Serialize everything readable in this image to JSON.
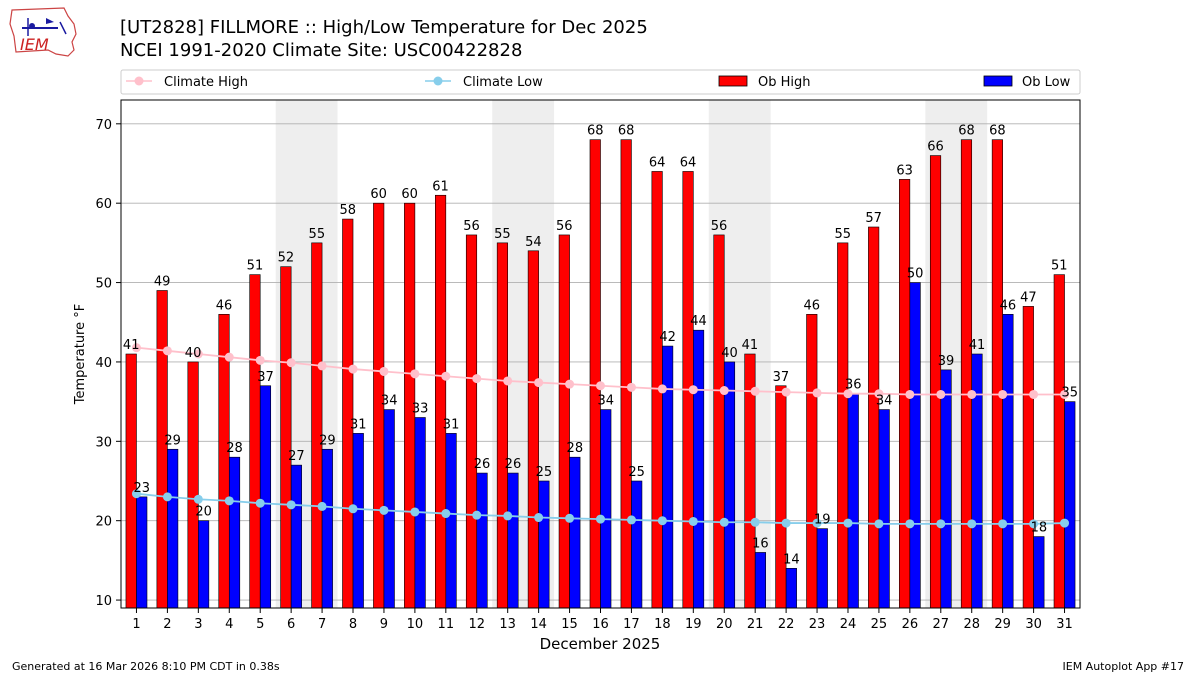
{
  "header": {
    "title_line1": "[UT2828] FILLMORE :: High/Low Temperature for Dec 2025",
    "title_line2": "NCEI 1991-2020 Climate Site: USC00422828",
    "logo_text": "IEM"
  },
  "footer": {
    "left": "Generated at 16 Mar 2026 8:10 PM CDT in 0.38s",
    "right": "IEM Autoplot App #17"
  },
  "colors": {
    "ob_high": "#ff0000",
    "ob_low": "#0000ff",
    "climate_high": "#ffc0cb",
    "climate_low": "#87ceeb",
    "weekend_band": "#eeeeee"
  },
  "chart_data": {
    "type": "bar",
    "xlabel": "December 2025",
    "ylabel": "Temperature °F",
    "ylim": [
      9,
      73
    ],
    "yticks": [
      10,
      20,
      30,
      40,
      50,
      60,
      70
    ],
    "grid": "horizontal",
    "legend_position": "top",
    "legend": [
      "Climate High",
      "Climate Low",
      "Ob High",
      "Ob Low"
    ],
    "categories": [
      "1",
      "2",
      "3",
      "4",
      "5",
      "6",
      "7",
      "8",
      "9",
      "10",
      "11",
      "12",
      "13",
      "14",
      "15",
      "16",
      "17",
      "18",
      "19",
      "20",
      "21",
      "22",
      "23",
      "24",
      "25",
      "26",
      "27",
      "28",
      "29",
      "30",
      "31"
    ],
    "shaded_days": [
      [
        "6",
        "7"
      ],
      [
        "13",
        "14"
      ],
      [
        "20",
        "21"
      ],
      [
        "27",
        "28"
      ]
    ],
    "series": [
      {
        "name": "Ob High",
        "kind": "bar",
        "values": [
          41,
          49,
          40,
          46,
          51,
          52,
          55,
          58,
          60,
          60,
          61,
          56,
          55,
          54,
          56,
          68,
          68,
          64,
          64,
          56,
          41,
          37,
          46,
          55,
          57,
          63,
          66,
          68,
          68,
          47,
          51
        ]
      },
      {
        "name": "Ob Low",
        "kind": "bar",
        "values": [
          23,
          29,
          20,
          28,
          37,
          27,
          29,
          31,
          34,
          33,
          31,
          26,
          26,
          25,
          28,
          34,
          25,
          42,
          44,
          40,
          16,
          14,
          19,
          36,
          34,
          50,
          39,
          41,
          46,
          18,
          35
        ]
      },
      {
        "name": "Climate High",
        "kind": "line",
        "values": [
          41.8,
          41.4,
          41.0,
          40.6,
          40.2,
          39.9,
          39.5,
          39.1,
          38.8,
          38.5,
          38.2,
          37.9,
          37.6,
          37.4,
          37.2,
          37.0,
          36.8,
          36.6,
          36.5,
          36.4,
          36.3,
          36.2,
          36.1,
          36.0,
          36.0,
          35.9,
          35.9,
          35.9,
          35.9,
          35.9,
          35.9
        ]
      },
      {
        "name": "Climate Low",
        "kind": "line",
        "values": [
          23.4,
          23.0,
          22.7,
          22.5,
          22.2,
          22.0,
          21.8,
          21.5,
          21.3,
          21.1,
          20.9,
          20.7,
          20.6,
          20.4,
          20.3,
          20.2,
          20.1,
          20.0,
          19.9,
          19.8,
          19.8,
          19.7,
          19.7,
          19.7,
          19.6,
          19.6,
          19.6,
          19.6,
          19.6,
          19.6,
          19.7
        ]
      }
    ]
  }
}
